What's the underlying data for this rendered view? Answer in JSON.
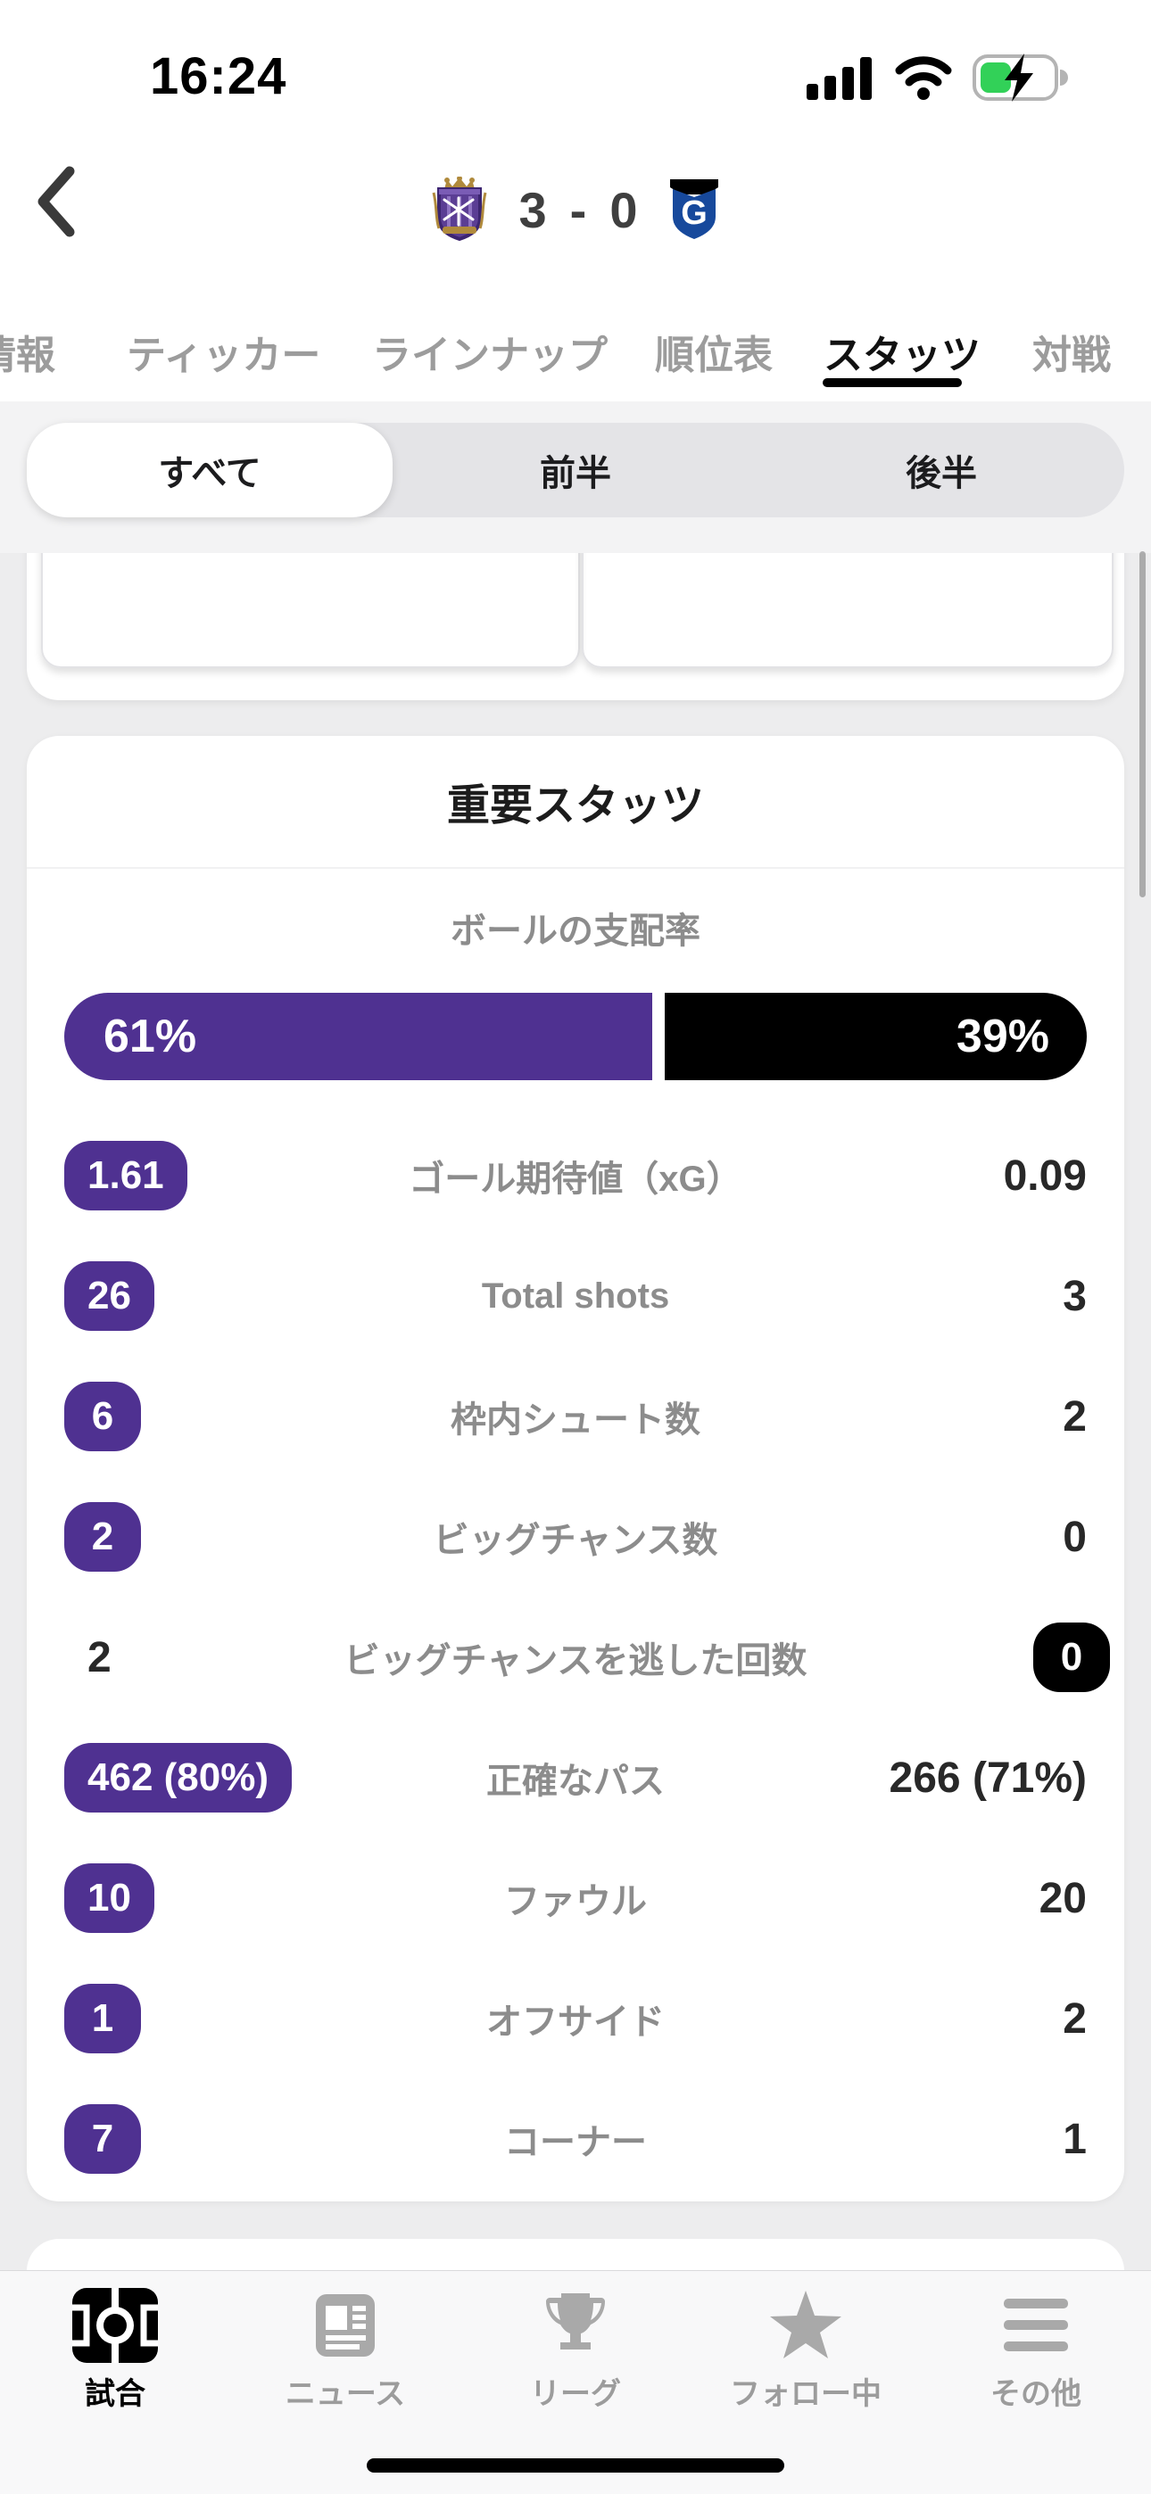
{
  "status_bar": {
    "time": "16:24"
  },
  "header": {
    "score_home": "3",
    "score_divider": "-",
    "score_away": "0",
    "home_team_logo": "sanfrecce-hiroshima-crest",
    "away_team_logo": "gamba-osaka-crest"
  },
  "tabs": [
    {
      "label": "情報",
      "active": false
    },
    {
      "label": "ティッカー",
      "active": false
    },
    {
      "label": "ラインナップ",
      "active": false
    },
    {
      "label": "順位表",
      "active": false
    },
    {
      "label": "スタッツ",
      "active": true
    },
    {
      "label": "対戦",
      "active": false
    }
  ],
  "segmented": {
    "options": [
      {
        "label": "すべて",
        "selected": true
      },
      {
        "label": "前半",
        "selected": false
      },
      {
        "label": "後半",
        "selected": false
      }
    ]
  },
  "stats_card": {
    "title": "重要スタッツ",
    "possession": {
      "label": "ボールの支配率",
      "home_pct": "61%",
      "away_pct": "39%",
      "home_value": 61,
      "away_value": 39
    },
    "rows": [
      {
        "home": "1.61",
        "label": "ゴール期待値（xG）",
        "away": "0.09",
        "home_style": "pill",
        "away_style": "text"
      },
      {
        "home": "26",
        "label": "Total shots",
        "away": "3",
        "home_style": "pill",
        "away_style": "text"
      },
      {
        "home": "6",
        "label": "枠内シュート数",
        "away": "2",
        "home_style": "pill",
        "away_style": "text"
      },
      {
        "home": "2",
        "label": "ビッグチャンス数",
        "away": "0",
        "home_style": "pill",
        "away_style": "text"
      },
      {
        "home": "2",
        "label": "ビッグチャンスを逃した回数",
        "away": "0",
        "home_style": "text",
        "away_style": "pill-black"
      },
      {
        "home": "462 (80%)",
        "label": "正確なパス",
        "away": "266 (71%)",
        "home_style": "pill",
        "away_style": "text"
      },
      {
        "home": "10",
        "label": "ファウル",
        "away": "20",
        "home_style": "pill",
        "away_style": "text"
      },
      {
        "home": "1",
        "label": "オフサイド",
        "away": "2",
        "home_style": "pill",
        "away_style": "text"
      },
      {
        "home": "7",
        "label": "コーナー",
        "away": "1",
        "home_style": "pill",
        "away_style": "text"
      }
    ]
  },
  "bottom_nav": {
    "items": [
      {
        "label": "試合",
        "icon": "pitch-icon",
        "active": true
      },
      {
        "label": "ニュース",
        "icon": "newspaper-icon",
        "active": false
      },
      {
        "label": "リーグ",
        "icon": "trophy-icon",
        "active": false
      },
      {
        "label": "フォロー中",
        "icon": "star-icon",
        "active": false
      },
      {
        "label": "その他",
        "icon": "menu-icon",
        "active": false
      }
    ]
  },
  "colors": {
    "home_purple": "#4f3191",
    "away_black": "#000000",
    "battery_green": "#32d158",
    "active_underline": "#000000"
  }
}
